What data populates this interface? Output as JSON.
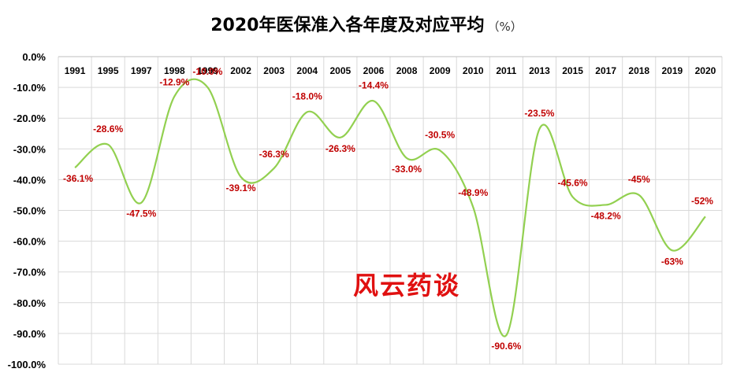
{
  "chart_data": {
    "type": "line",
    "title": "2020年医保准入各年度及对应平均",
    "title_unit": "（%）",
    "watermark": "风云药谈",
    "categories": [
      "1991",
      "1995",
      "1997",
      "1998",
      "1999",
      "2002",
      "2003",
      "2004",
      "2005",
      "2006",
      "2008",
      "2009",
      "2010",
      "2011",
      "2013",
      "2015",
      "2017",
      "2018",
      "2019",
      "2020"
    ],
    "values": [
      -36.1,
      -28.6,
      -47.5,
      -12.9,
      -10.0,
      -39.1,
      -36.3,
      -18.0,
      -26.3,
      -14.4,
      -33.0,
      -30.5,
      -48.9,
      -90.6,
      -23.5,
      -45.6,
      -48.2,
      -45,
      -63,
      -52
    ],
    "data_labels": [
      "-36.1%",
      "-28.6%",
      "-47.5%",
      "-12.9%",
      "-10.0%",
      "-39.1%",
      "-36.3%",
      "-18.0%",
      "-26.3%",
      "-14.4%",
      "-33.0%",
      "-30.5%",
      "-48.9%",
      "-90.6%",
      "-23.5%",
      "-45.6%",
      "-48.2%",
      "-45%",
      "-63%",
      "-52%"
    ],
    "yticks": [
      0,
      -10,
      -20,
      -30,
      -40,
      -50,
      -60,
      -70,
      -80,
      -90,
      -100
    ],
    "ytick_labels": [
      "0.0%",
      "-10.0%",
      "-20.0%",
      "-30.0%",
      "-40.0%",
      "-50.0%",
      "-60.0%",
      "-70.0%",
      "-80.0%",
      "-90.0%",
      "-100.0%"
    ],
    "ylim": [
      -100,
      0
    ],
    "xaxis_position": "top",
    "grid": true,
    "line_color": "#92d050",
    "label_color": "#c00000"
  }
}
